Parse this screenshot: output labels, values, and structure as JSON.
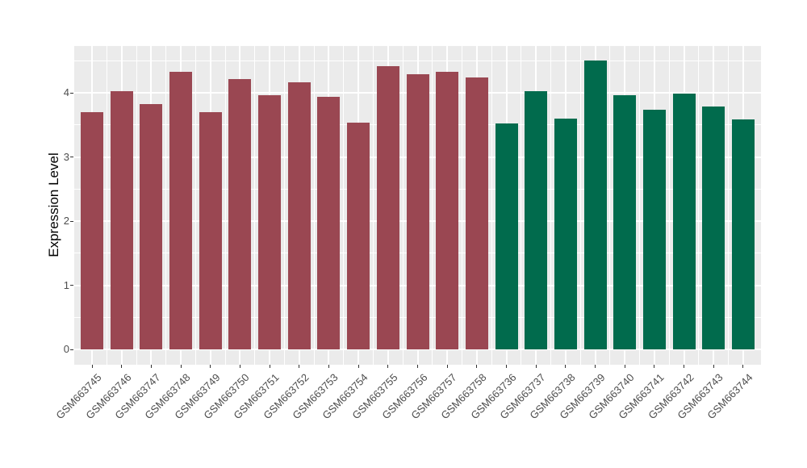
{
  "chart_data": {
    "type": "bar",
    "title": "",
    "xlabel": "",
    "ylabel": "Expression Level",
    "ylim": [
      -0.24,
      4.73
    ],
    "y_major_ticks": [
      0,
      1,
      2,
      3,
      4
    ],
    "y_minor_ticks": [
      0.5,
      1.5,
      2.5,
      3.5,
      4.5
    ],
    "grid": "white major and minor gridlines on grey panel",
    "legend_position": "none",
    "group_colors": {
      "darkred": "#9A4752",
      "darkgreen": "#016B4D"
    },
    "categories": [
      "GSM663745",
      "GSM663746",
      "GSM663747",
      "GSM663748",
      "GSM663749",
      "GSM663750",
      "GSM663751",
      "GSM663752",
      "GSM663753",
      "GSM663754",
      "GSM663755",
      "GSM663756",
      "GSM663757",
      "GSM663758",
      "GSM663736",
      "GSM663737",
      "GSM663738",
      "GSM663739",
      "GSM663740",
      "GSM663741",
      "GSM663742",
      "GSM663743",
      "GSM663744"
    ],
    "bars": [
      {
        "label": "GSM663745",
        "value": 3.7,
        "group": "darkred"
      },
      {
        "label": "GSM663746",
        "value": 4.03,
        "group": "darkred"
      },
      {
        "label": "GSM663747",
        "value": 3.82,
        "group": "darkred"
      },
      {
        "label": "GSM663748",
        "value": 4.33,
        "group": "darkred"
      },
      {
        "label": "GSM663749",
        "value": 3.7,
        "group": "darkred"
      },
      {
        "label": "GSM663750",
        "value": 4.21,
        "group": "darkred"
      },
      {
        "label": "GSM663751",
        "value": 3.96,
        "group": "darkred"
      },
      {
        "label": "GSM663752",
        "value": 4.16,
        "group": "darkred"
      },
      {
        "label": "GSM663753",
        "value": 3.94,
        "group": "darkred"
      },
      {
        "label": "GSM663754",
        "value": 3.53,
        "group": "darkred"
      },
      {
        "label": "GSM663755",
        "value": 4.42,
        "group": "darkred"
      },
      {
        "label": "GSM663756",
        "value": 4.29,
        "group": "darkred"
      },
      {
        "label": "GSM663757",
        "value": 4.33,
        "group": "darkred"
      },
      {
        "label": "GSM663758",
        "value": 4.24,
        "group": "darkred"
      },
      {
        "label": "GSM663736",
        "value": 3.52,
        "group": "darkgreen"
      },
      {
        "label": "GSM663737",
        "value": 4.02,
        "group": "darkgreen"
      },
      {
        "label": "GSM663738",
        "value": 3.6,
        "group": "darkgreen"
      },
      {
        "label": "GSM663739",
        "value": 4.5,
        "group": "darkgreen"
      },
      {
        "label": "GSM663740",
        "value": 3.96,
        "group": "darkgreen"
      },
      {
        "label": "GSM663741",
        "value": 3.73,
        "group": "darkgreen"
      },
      {
        "label": "GSM663742",
        "value": 3.99,
        "group": "darkgreen"
      },
      {
        "label": "GSM663743",
        "value": 3.78,
        "group": "darkgreen"
      },
      {
        "label": "GSM663744",
        "value": 3.58,
        "group": "darkgreen"
      }
    ]
  },
  "styles": {
    "background": "#FFFFFF",
    "panel_background": "#EBEBEB",
    "gridline_color": "#FFFFFF",
    "tick_text_color": "#4D4D4D",
    "axis_title_color": "#000000",
    "tick_mark_color": "#333333"
  }
}
